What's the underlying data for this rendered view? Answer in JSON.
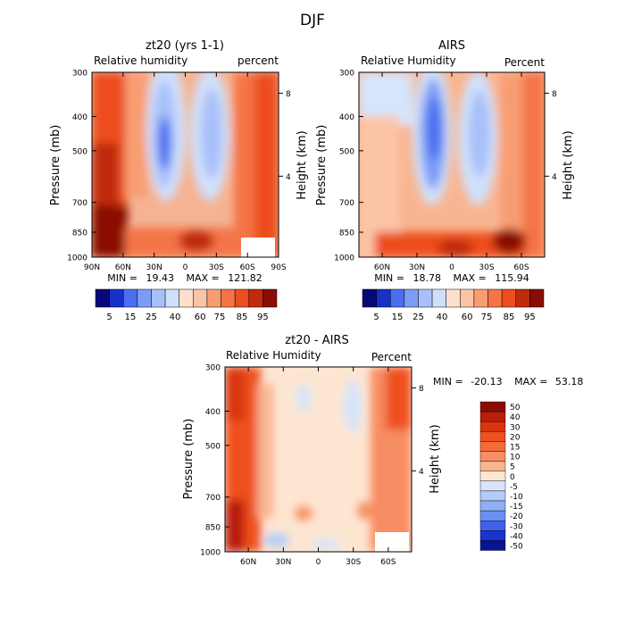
{
  "page_title": "DJF",
  "chart_data": [
    {
      "type": "heatmap",
      "id": "model",
      "title": "zt20 (yrs 1-1)",
      "left_label": "Relative humidity",
      "right_label": "percent",
      "ylabel": "Pressure (mb)",
      "y2label": "Height (km)",
      "pressure_ticks": [
        300,
        400,
        500,
        700,
        850,
        1000
      ],
      "pressure_tick_labels": [
        "300",
        "400",
        "500",
        "700",
        "850",
        "1000"
      ],
      "height_ticks": [
        8,
        4
      ],
      "height_tick_labels": [
        "8",
        "4"
      ],
      "x_ticks": [
        90,
        60,
        30,
        0,
        -30,
        -60,
        -90
      ],
      "x_tick_labels": [
        "90N",
        "60N",
        "30N",
        "0",
        "30S",
        "60S",
        "90S"
      ],
      "xlim": [
        90,
        -90
      ],
      "ylim": [
        300,
        1000
      ],
      "stats": {
        "min_label": "MIN =",
        "min": "19.43",
        "max_label": "MAX =",
        "max": "121.82"
      },
      "colorbar_levels": [
        "5",
        "15",
        "25",
        "40",
        "60",
        "75",
        "85",
        "95"
      ]
    },
    {
      "type": "heatmap",
      "id": "airs",
      "title": "AIRS",
      "left_label": "Relative Humidity",
      "right_label": "Percent",
      "ylabel": "Pressure (mb)",
      "y2label": "Height (km)",
      "pressure_ticks": [
        300,
        400,
        500,
        700,
        850,
        1000
      ],
      "pressure_tick_labels": [
        "300",
        "400",
        "500",
        "700",
        "850",
        "1000"
      ],
      "height_ticks": [
        8,
        4
      ],
      "height_tick_labels": [
        "8",
        "4"
      ],
      "x_ticks": [
        60,
        30,
        0,
        -30,
        -60
      ],
      "x_tick_labels": [
        "60N",
        "30N",
        "0",
        "30S",
        "60S"
      ],
      "xlim": [
        80,
        -80
      ],
      "ylim": [
        300,
        1000
      ],
      "stats": {
        "min_label": "MIN =",
        "min": "18.78",
        "max_label": "MAX =",
        "max": "115.94"
      },
      "colorbar_levels": [
        "5",
        "15",
        "25",
        "40",
        "60",
        "75",
        "85",
        "95"
      ]
    },
    {
      "type": "heatmap",
      "id": "diff",
      "title": "zt20 - AIRS",
      "left_label": "Relative Humidity",
      "right_label": "Percent",
      "ylabel": "Pressure (mb)",
      "y2label": "Height (km)",
      "pressure_ticks": [
        300,
        400,
        500,
        700,
        850,
        1000
      ],
      "pressure_tick_labels": [
        "300",
        "400",
        "500",
        "700",
        "850",
        "1000"
      ],
      "height_ticks": [
        8,
        4
      ],
      "height_tick_labels": [
        "8",
        "4"
      ],
      "x_ticks": [
        60,
        30,
        0,
        -30,
        -60
      ],
      "x_tick_labels": [
        "60N",
        "30N",
        "0",
        "30S",
        "60S"
      ],
      "xlim": [
        80,
        -80
      ],
      "ylim": [
        300,
        1000
      ],
      "stats": {
        "min_label": "MIN =",
        "min": "-20.13",
        "max_label": "MAX =",
        "max": "53.18"
      },
      "colorbar_levels": [
        "50",
        "40",
        "30",
        "20",
        "15",
        "10",
        "5",
        "0",
        "-5",
        "-10",
        "-15",
        "-20",
        "-30",
        "-40",
        "-50"
      ]
    }
  ],
  "colors": {
    "full_scale": [
      "#08087a",
      "#1730c8",
      "#4a6ef0",
      "#7d9cf5",
      "#a8c0f9",
      "#d0e0fb",
      "#fde0cc",
      "#fbc4a6",
      "#f89d72",
      "#f47446",
      "#ed4e1f",
      "#c02b0b",
      "#8a0d05"
    ],
    "diff_scale": [
      "#8a0d05",
      "#b81e08",
      "#d8340f",
      "#ef501f",
      "#f46a3a",
      "#f78d62",
      "#f9b591",
      "#fde6d2",
      "#d6e5fb",
      "#b3ccf8",
      "#8fb0f4",
      "#6a8ff0",
      "#3e62ea",
      "#1a35cf",
      "#0a1395"
    ]
  }
}
